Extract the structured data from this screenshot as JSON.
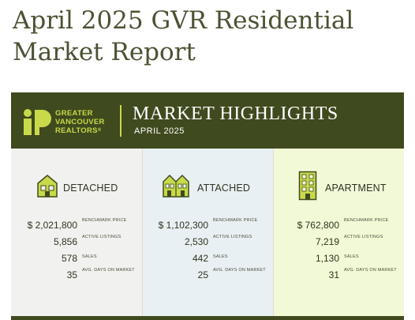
{
  "page": {
    "title": "April 2025 GVR Residential Market Report"
  },
  "banner": {
    "logo_line1": "GREATER",
    "logo_line2": "VANCOUVER",
    "logo_line3": "REALTORS",
    "logo_trademark": "®",
    "title": "MARKET HIGHLIGHTS",
    "subtitle": "APRIL 2025",
    "accent_color": "#c8d94a",
    "background_color": "#3f4a1e"
  },
  "columns": [
    {
      "label": "DETACHED",
      "icon": "house-icon",
      "benchmark_price": "$ 2,021,800",
      "active_listings": "5,856",
      "sales": "578",
      "avg_days": "35"
    },
    {
      "label": "ATTACHED",
      "icon": "townhouse-icon",
      "benchmark_price": "$ 1,102,300",
      "active_listings": "2,530",
      "sales": "442",
      "avg_days": "25"
    },
    {
      "label": "APARTMENT",
      "icon": "apartment-building-icon",
      "benchmark_price": "$ 762,800",
      "active_listings": "7,219",
      "sales": "1,130",
      "avg_days": "31"
    }
  ],
  "labels": {
    "benchmark_price": "BENCHMARK PRICE",
    "active_listings": "ACTIVE LISTINGS",
    "sales": "SALES",
    "avg_days": "AVG. DAYS ON MARKET"
  }
}
